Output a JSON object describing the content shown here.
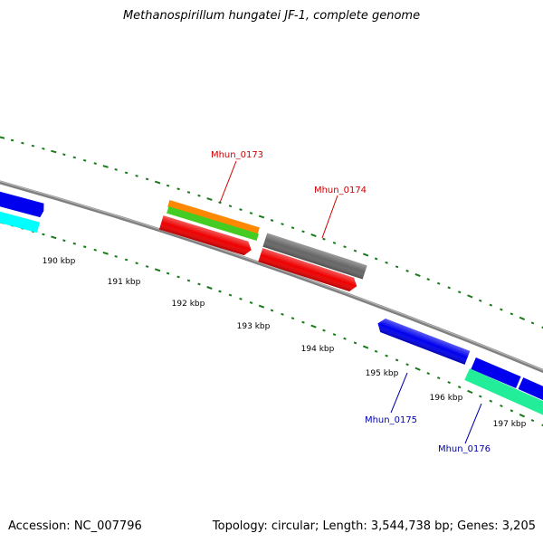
{
  "title": "Methanospirillum hungatei JF-1, complete genome",
  "footer": {
    "accession": "Accession: NC_007796",
    "summary": "Topology: circular; Length: 3,544,738 bp; Genes: 3,205"
  },
  "tick_labels": [
    "190 kbp",
    "191 kbp",
    "192 kbp",
    "193 kbp",
    "194 kbp",
    "195 kbp",
    "196 kbp",
    "197 kbp"
  ],
  "gene_labels": [
    {
      "text": "Mhun_0173",
      "color": "#cc0000"
    },
    {
      "text": "Mhun_0174",
      "color": "#cc0000"
    },
    {
      "text": "Mhun_0175",
      "color": "#0000aa"
    },
    {
      "text": "Mhun_0176",
      "color": "#0000aa"
    }
  ],
  "colors": {
    "backbone": "#808080",
    "ticks": "#1a7a1a",
    "red": "#ee0000",
    "orange": "#ff8800",
    "green": "#44cc22",
    "gray": "#666666",
    "blue": "#0000ee",
    "cyan": "#00ffff",
    "sea_green": "#22ee99"
  }
}
